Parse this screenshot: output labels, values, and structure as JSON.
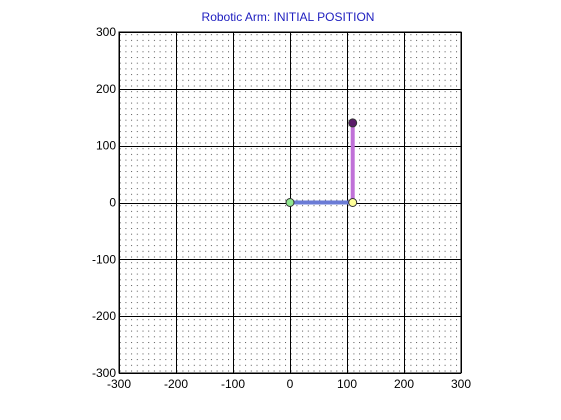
{
  "chart_data": {
    "type": "line",
    "title": "Robotic Arm: INITIAL POSITION",
    "xlabel": "",
    "ylabel": "",
    "xlim": [
      -300,
      300
    ],
    "ylim": [
      -300,
      300
    ],
    "xticks": [
      -300,
      -200,
      -100,
      0,
      100,
      200,
      300
    ],
    "yticks": [
      -300,
      -200,
      -100,
      0,
      100,
      200,
      300
    ],
    "xtick_labels": [
      "-300",
      "-200",
      "-100",
      "0",
      "100",
      "200",
      "300"
    ],
    "ytick_labels": [
      "-300",
      "-200",
      "-100",
      "0",
      "100",
      "200",
      "300"
    ],
    "grid": true,
    "minor_grid": "dotted",
    "series": [
      {
        "values": [
          [
            0,
            0
          ],
          [
            110,
            0
          ]
        ]
      },
      {
        "values": [
          [
            110,
            0
          ],
          [
            110,
            140
          ]
        ]
      }
    ],
    "joints": [
      {
        "x": 0,
        "y": 0
      },
      {
        "x": 110,
        "y": 0
      },
      {
        "x": 110,
        "y": 140
      }
    ]
  },
  "colors": {
    "title": "#2020c0",
    "background": "#ffffff",
    "major_grid": "#000000",
    "minor_dot": "#444444",
    "link1": "#6a7bd6",
    "link2": "#c070d8",
    "joint_base": "#90e890",
    "joint_elbow": "#ffff99",
    "joint_end": "#5a1a6a"
  }
}
